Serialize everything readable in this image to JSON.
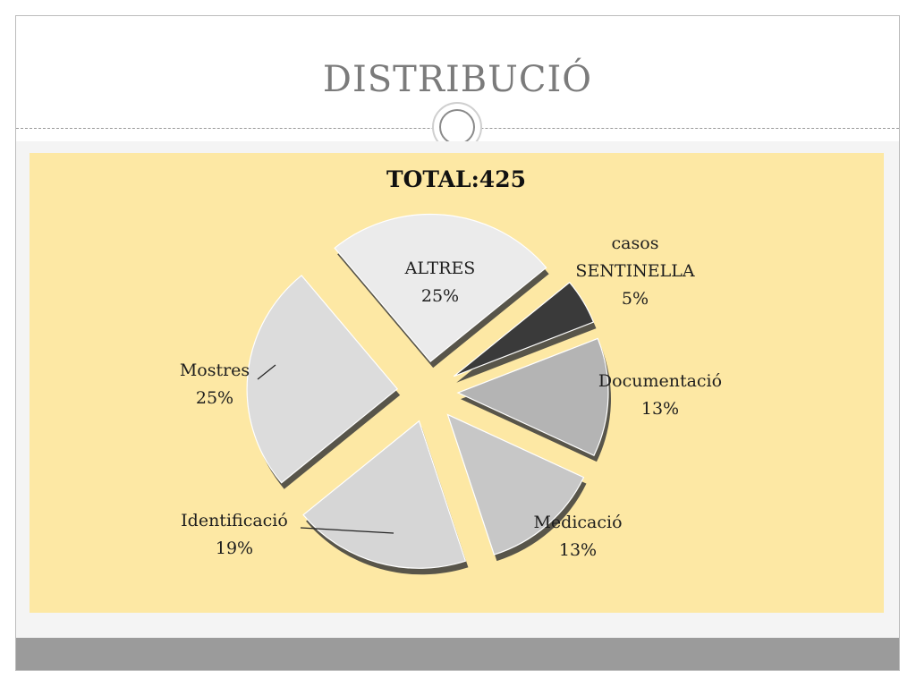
{
  "slide": {
    "title": "DISTRIBUCIÓ"
  },
  "colors": {
    "panel": "#fde8a4",
    "footer": "#9b9b9b"
  },
  "chart_data": {
    "type": "pie",
    "style": "exploded 3D",
    "title": "TOTAL:425",
    "slices": [
      {
        "label": "ALTRES",
        "percent": "25%",
        "value": 25,
        "color": "#ebebeb"
      },
      {
        "label": "casos SENTINELLA",
        "label_lines": [
          "casos",
          "SENTINELLA"
        ],
        "percent": "5%",
        "value": 5,
        "color": "#3a3a3a"
      },
      {
        "label": "Documentació",
        "percent": "13%",
        "value": 13,
        "color": "#b4b4b4"
      },
      {
        "label": "Medicació",
        "percent": "13%",
        "value": 13,
        "color": "#c7c7c7"
      },
      {
        "label": "Identificació",
        "percent": "19%",
        "value": 19,
        "color": "#d6d6d6"
      },
      {
        "label": "Mostres",
        "percent": "25%",
        "value": 25,
        "color": "#dcdcdc"
      }
    ]
  }
}
